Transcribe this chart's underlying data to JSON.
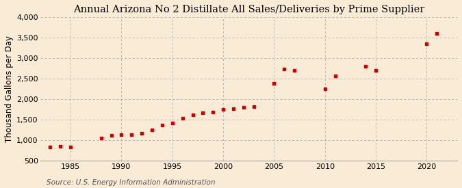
{
  "title": "Annual Arizona No 2 Distillate All Sales/Deliveries by Prime Supplier",
  "ylabel": "Thousand Gallons per Day",
  "source": "Source: U.S. Energy Information Administration",
  "background_color": "#faebd7",
  "marker_color": "#cc0000",
  "years": [
    1983,
    1984,
    1985,
    1988,
    1989,
    1990,
    1991,
    1992,
    1993,
    1994,
    1995,
    1996,
    1997,
    1998,
    1999,
    2000,
    2001,
    2002,
    2003,
    2005,
    2006,
    2007,
    2010,
    2011,
    2014,
    2015,
    2020,
    2021
  ],
  "values": [
    820,
    850,
    830,
    1040,
    1110,
    1130,
    1130,
    1160,
    1250,
    1370,
    1420,
    1530,
    1620,
    1660,
    1680,
    1750,
    1770,
    1790,
    1810,
    2380,
    2730,
    2700,
    2240,
    2560,
    2790,
    2700,
    3340,
    3600
  ],
  "xlim": [
    1982,
    2023
  ],
  "ylim": [
    500,
    4000
  ],
  "yticks": [
    500,
    1000,
    1500,
    2000,
    2500,
    3000,
    3500,
    4000
  ],
  "xticks": [
    1985,
    1990,
    1995,
    2000,
    2005,
    2010,
    2015,
    2020
  ],
  "title_fontsize": 10.5,
  "label_fontsize": 8.5,
  "tick_fontsize": 8,
  "source_fontsize": 7.5
}
